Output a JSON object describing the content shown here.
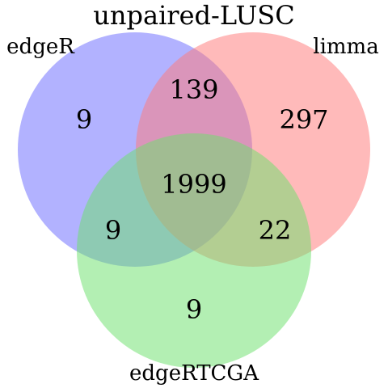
{
  "title": "unpaired-LUSC",
  "sets": [
    {
      "key": "a",
      "label": "edgeR",
      "color": "#6b6bff"
    },
    {
      "key": "b",
      "label": "limma",
      "color": "#ff7b7b"
    },
    {
      "key": "c",
      "label": "edgeRTCGA",
      "color": "#6ee06e"
    }
  ],
  "regions": {
    "only_edgeR": "9",
    "only_limma": "297",
    "only_edgeRTCGA": "9",
    "edgeR_limma": "139",
    "edgeR_edgeRTCGA": "9",
    "limma_edgeRTCGA": "22",
    "all_three": "1999"
  },
  "colors": {
    "edgeR": "#6b6bff",
    "limma": "#ff7b7b",
    "edgeRTCGA": "#6ee06e"
  }
}
